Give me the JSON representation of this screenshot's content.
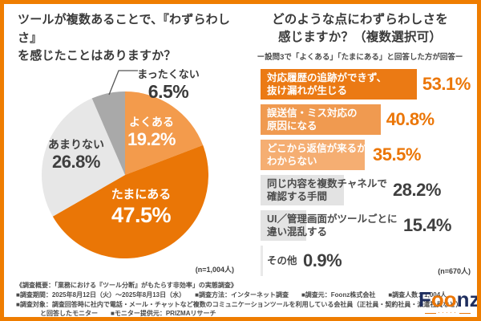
{
  "left_chart": {
    "title": "ツールが複数あることで、『わずらわしさ』\nを感じたことはありますか？",
    "n_label": "(n=1,004人)"
  },
  "right_chart": {
    "title": "どのような点にわずらわしさを\n感じますか？（複数選択可）",
    "subtitle": "ー設問3で「よくある」「たまにある」と回答した方が回答ー",
    "n_label": "(n=670人)"
  },
  "chart_data": [
    {
      "type": "pie",
      "title": "ツールが複数あることで、『わずらわしさ』を感じたことはありますか？",
      "categories": [
        "よくある",
        "たまにある",
        "あまりない",
        "まったくない"
      ],
      "values": [
        19.2,
        47.5,
        26.8,
        6.5
      ],
      "value_labels": [
        "19.2%",
        "47.5%",
        "26.8%",
        "6.5%"
      ],
      "unit": "%",
      "n": "1,004人",
      "start_angle_deg": -90,
      "direction": "clockwise",
      "colors": [
        "#F39B4C",
        "#EA7606",
        "#E7E7E7",
        "#A9A9A9"
      ]
    },
    {
      "type": "bar",
      "orientation": "horizontal",
      "title": "どのような点にわずらわしさを感じますか？（複数選択可）",
      "categories": [
        "対応履歴の追跡ができず、\n抜け漏れが生じる",
        "誤送信・ミス対応の\n原因になる",
        "どこから返信が来るか\nわからない",
        "同じ内容を複数チャネルで\n確認する手間",
        "UI／管理画面がツールごとに\n違い混乱する",
        "その他"
      ],
      "values": [
        53.1,
        40.8,
        35.5,
        28.2,
        15.4,
        0.9
      ],
      "value_labels": [
        "53.1%",
        "40.8%",
        "35.5%",
        "28.2%",
        "15.4%",
        "0.9%"
      ],
      "unit": "%",
      "n": "670人",
      "xlim": [
        0,
        72.5
      ],
      "colors": [
        "#EB7A14",
        "#F09A50",
        "#F5AE72",
        "#E3E3E3",
        "#E3E3E3",
        "#E9E9E9"
      ],
      "label_colors": [
        "#ffffff",
        "#ffffff",
        "#ffffff",
        "#4a4a4a",
        "#4a4a4a",
        "#4a4a4a"
      ],
      "value_colors": [
        "#EB7607",
        "#EB7607",
        "#EB7607",
        "#3f3f3f",
        "#3f3f3f",
        "#3f3f3f"
      ]
    }
  ],
  "footer": {
    "lines": [
      "《調査概要：「業務における『ツール分断』がもたらす非効率」の実態調査》",
      "■調査期間：2025年8月12日（火）～2025年8月13日（水）　　■調査方法：インターネット調査　　■調査元：Foonz株式会社　　■調査人数：1,004人",
      "■調査対象：調査回答時に社内で電話・メール・チャットなど複数のコミュニケーションツールを利用している会社員（正社員・契約社員・派遣社員など）",
      "と回答したモニター　　■モニター提供元：PRIZMAリサーチ"
    ]
  },
  "logo": {
    "text": "Foonz"
  },
  "colors": {
    "frame": "#EF7D00",
    "accent_orange": "#EB7607",
    "logo_navy": "#1f2e5e",
    "text_dark": "#3a3a3a"
  }
}
